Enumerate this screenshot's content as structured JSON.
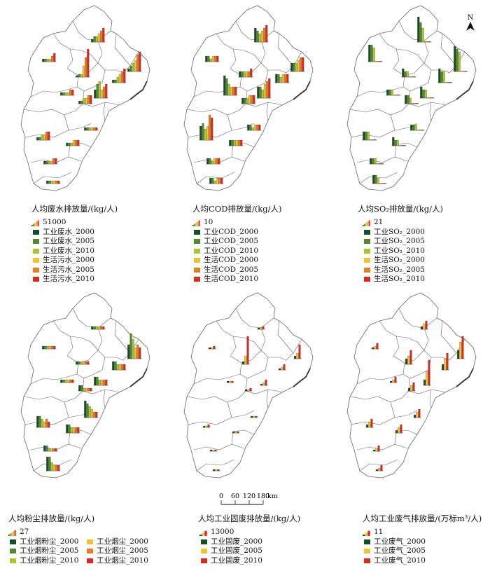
{
  "colors": {
    "industrial": [
      "#1b4d22",
      "#4f8a2d",
      "#a8c62f"
    ],
    "domestic": [
      "#f1c232",
      "#e67e22",
      "#d92b1b"
    ],
    "boundary": "#666666"
  },
  "north_label": "N",
  "scale_bar": {
    "ticks": [
      "0",
      "60",
      "120",
      "180"
    ],
    "unit": "km"
  },
  "panels": [
    {
      "id": "wastewater",
      "title": "人均废水排放量/(kg/人)",
      "scale_value": "51000",
      "legend": [
        {
          "label": "工业废水_2000",
          "color": "#1b4d22"
        },
        {
          "label": "工业废水_2005",
          "color": "#4f8a2d"
        },
        {
          "label": "工业废水_2010",
          "color": "#a8c62f"
        },
        {
          "label": "生活污水_2000",
          "color": "#f1c232"
        },
        {
          "label": "生活污水_2005",
          "color": "#e67e22"
        },
        {
          "label": "生活污水_2010",
          "color": "#d92b1b"
        }
      ],
      "series_values": [
        [
          0.1,
          0.1,
          0.1,
          0.1,
          0.2,
          0.3
        ],
        [
          0.1,
          0.2,
          0.2,
          0.3,
          0.4,
          0.5
        ],
        [
          0.05,
          0.1,
          0.1,
          0.4,
          0.7,
          1.0
        ],
        [
          0.1,
          0.2,
          0.3,
          0.4,
          0.6,
          0.7
        ],
        [
          0.1,
          0.1,
          0.2,
          0.3,
          0.4,
          0.5
        ],
        [
          0.3,
          0.5,
          0.6,
          0.3,
          0.4,
          0.5
        ],
        [
          0.1,
          0.1,
          0.2,
          0.2,
          0.3,
          0.3
        ],
        [
          0.1,
          0.1,
          0.1,
          0.1,
          0.2,
          0.2
        ],
        [
          0.1,
          0.1,
          0.2,
          0.2,
          0.3,
          0.3
        ],
        [
          0.1,
          0.1,
          0.1,
          0.2,
          0.2,
          0.2
        ],
        [
          0.1,
          0.1,
          0.1,
          0.1,
          0.2,
          0.2
        ],
        [
          0.1,
          0.1,
          0.1,
          0.1,
          0.1,
          0.1
        ],
        [
          0.1,
          0.1,
          0.1,
          0.1,
          0.1,
          0.1
        ]
      ]
    },
    {
      "id": "cod",
      "title": "人均COD排放量/(kg/人)",
      "scale_value": "10",
      "legend": [
        {
          "label": "工业COD_2000",
          "color": "#1b4d22"
        },
        {
          "label": "工业COD_2005",
          "color": "#4f8a2d"
        },
        {
          "label": "工业COD_2010",
          "color": "#a8c62f"
        },
        {
          "label": "生活COD_2000",
          "color": "#f1c232"
        },
        {
          "label": "生活COD_2005",
          "color": "#e67e22"
        },
        {
          "label": "生活COD_2010",
          "color": "#d92b1b"
        }
      ],
      "series_values": [
        [
          0.2,
          0.2,
          0.1,
          0.2,
          0.2,
          0.2
        ],
        [
          0.5,
          0.4,
          0.3,
          0.4,
          0.5,
          0.6
        ],
        [
          0.2,
          0.2,
          0.2,
          0.2,
          0.2,
          0.3
        ],
        [
          0.3,
          0.3,
          0.3,
          0.4,
          0.5,
          0.5
        ],
        [
          0.3,
          0.3,
          0.2,
          0.3,
          0.3,
          0.3
        ],
        [
          0.4,
          0.4,
          0.3,
          0.5,
          0.6,
          0.7
        ],
        [
          0.2,
          0.2,
          0.2,
          0.3,
          0.3,
          0.3
        ],
        [
          0.7,
          0.6,
          0.4,
          0.3,
          0.3,
          0.3
        ],
        [
          0.5,
          0.6,
          0.4,
          0.5,
          0.9,
          0.8
        ],
        [
          0.2,
          0.2,
          0.2,
          0.2,
          0.2,
          0.2
        ],
        [
          0.2,
          0.2,
          0.1,
          0.2,
          0.2,
          0.2
        ],
        [
          0.2,
          0.2,
          0.1,
          0.2,
          0.2,
          0.2
        ],
        [
          0.2,
          0.2,
          0.1,
          0.2,
          0.2,
          0.2
        ]
      ]
    },
    {
      "id": "so2",
      "title": "人均SO₂排放量/(kg/人)",
      "scale_value": "21",
      "legend": [
        {
          "label": "工业SO₂_2000",
          "color": "#1b4d22"
        },
        {
          "label": "工业SO₂_2005",
          "color": "#4f8a2d"
        },
        {
          "label": "工业SO₂_2010",
          "color": "#a8c62f"
        },
        {
          "label": "生活SO₂_2000",
          "color": "#f1c232"
        },
        {
          "label": "生活SO₂_2005",
          "color": "#e67e22"
        },
        {
          "label": "生活SO₂_2010",
          "color": "#d92b1b"
        }
      ],
      "series_values": [
        [
          0.6,
          0.6,
          0.5,
          0,
          0,
          0
        ],
        [
          0.9,
          0.7,
          0.5,
          0,
          0,
          0
        ],
        [
          0.3,
          0.2,
          0.2,
          0,
          0,
          0
        ],
        [
          0.9,
          0.8,
          0.7,
          0,
          0,
          0
        ],
        [
          0.5,
          0.4,
          0.4,
          0,
          0,
          0
        ],
        [
          0.4,
          0.3,
          0.3,
          0,
          0,
          0
        ],
        [
          0.3,
          0.3,
          0.2,
          0,
          0,
          0
        ],
        [
          0.2,
          0.2,
          0.2,
          0,
          0,
          0
        ],
        [
          0.3,
          0.3,
          0.3,
          0,
          0,
          0
        ],
        [
          0.3,
          0.2,
          0.2,
          0,
          0,
          0
        ],
        [
          0.2,
          0.2,
          0.2,
          0,
          0,
          0
        ],
        [
          0.3,
          0.3,
          0.2,
          0,
          0,
          0
        ],
        [
          0.2,
          0.2,
          0.2,
          0,
          0,
          0
        ]
      ]
    },
    {
      "id": "dust",
      "title": "人均粉尘排放量/(kg/人)",
      "scale_value": "27",
      "legend": [
        {
          "label": "工业烟粉尘_2000",
          "color": "#1b4d22"
        },
        {
          "label": "工业烟粉尘_2005",
          "color": "#4f8a2d"
        },
        {
          "label": "工业烟粉尘_2010",
          "color": "#a8c62f"
        },
        {
          "label": "工业烟尘_2000",
          "color": "#f1c232"
        },
        {
          "label": "工业烟尘_2005",
          "color": "#e67e22"
        },
        {
          "label": "工业烟尘_2010",
          "color": "#d92b1b"
        }
      ],
      "series_values": [
        [
          0.1,
          0.1,
          0.1,
          0.1,
          0.1,
          0.1
        ],
        [
          0.1,
          0.1,
          0.1,
          0.1,
          0.1,
          0.1
        ],
        [
          0.1,
          0.1,
          0.1,
          0.1,
          0.1,
          0.1
        ],
        [
          0.5,
          0.9,
          0.7,
          0.4,
          0.5,
          0.4
        ],
        [
          0.3,
          0.3,
          0.2,
          0.2,
          0.2,
          0.2
        ],
        [
          0.3,
          0.3,
          0.2,
          0.2,
          0.2,
          0.2
        ],
        [
          0.2,
          0.2,
          0.1,
          0.1,
          0.1,
          0.1
        ],
        [
          0.1,
          0.1,
          0.1,
          0.1,
          0.1,
          0.1
        ],
        [
          0.4,
          0.4,
          0.3,
          0.2,
          0.3,
          0.2
        ],
        [
          0.3,
          0.3,
          0.2,
          0.2,
          0.2,
          0.2
        ],
        [
          0.2,
          0.2,
          0.1,
          0.1,
          0.1,
          0.1
        ],
        [
          0.5,
          0.5,
          0.3,
          0.2,
          0.2,
          0.2
        ],
        [
          0.6,
          0.5,
          0.4,
          0.3,
          0.2,
          0.2
        ]
      ]
    },
    {
      "id": "solid",
      "title": "人均工业固废排放量/(kg/人)",
      "scale_value": "13000",
      "legend": [
        {
          "label": "工业固废_2000",
          "color": "#1b4d22"
        },
        {
          "label": "工业固废_2005",
          "color": "#f1c232"
        },
        {
          "label": "工业固废_2010",
          "color": "#d92b1b"
        }
      ],
      "series_values": [
        [
          0.05,
          0.05,
          0.1
        ],
        [
          0.05,
          0.05,
          0.1
        ],
        [
          0.1,
          0.3,
          1.0
        ],
        [
          0.1,
          0.2,
          0.5
        ],
        [
          0.05,
          0.1,
          0.2
        ],
        [
          0.05,
          0.1,
          0.2
        ],
        [
          0.05,
          0.05,
          0.1
        ],
        [
          0.05,
          0.05,
          0.05
        ],
        [
          0.05,
          0.05,
          0.1
        ],
        [
          0.05,
          0.05,
          0.05
        ],
        [
          0.05,
          0.05,
          0.05
        ],
        [
          0.05,
          0.05,
          0.05
        ],
        [
          0.05,
          0.05,
          0.05
        ]
      ]
    },
    {
      "id": "gas",
      "title": "人均工业废气排放量/(万标m³/人)",
      "scale_value": "11",
      "legend": [
        {
          "label": "工业废气_2000",
          "color": "#1b4d22"
        },
        {
          "label": "工业废气_2005",
          "color": "#f1c232"
        },
        {
          "label": "工业废气_2010",
          "color": "#d92b1b"
        }
      ],
      "series_values": [
        [
          0.05,
          0.1,
          0.2
        ],
        [
          0.1,
          0.2,
          0.3
        ],
        [
          0.2,
          0.3,
          0.5
        ],
        [
          0.3,
          0.6,
          0.8
        ],
        [
          0.2,
          0.4,
          0.6
        ],
        [
          0.2,
          0.5,
          0.9
        ],
        [
          0.1,
          0.2,
          0.3
        ],
        [
          0.05,
          0.1,
          0.2
        ],
        [
          0.1,
          0.2,
          0.3
        ],
        [
          0.1,
          0.2,
          0.3
        ],
        [
          0.05,
          0.1,
          0.2
        ],
        [
          0.05,
          0.1,
          0.2
        ],
        [
          0.1,
          0.2,
          0.3
        ]
      ]
    }
  ]
}
